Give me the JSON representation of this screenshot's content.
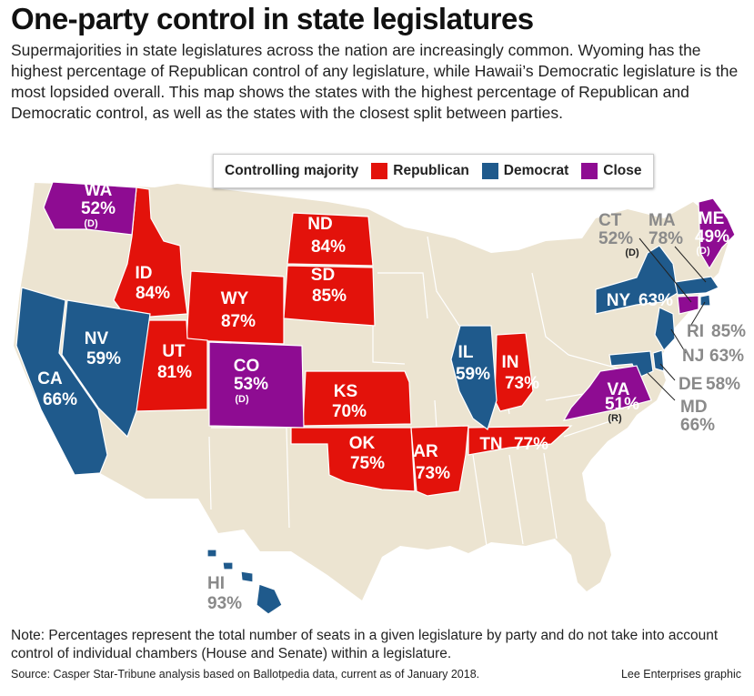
{
  "title": "One-party control in state legislatures",
  "intro": "Supermajorities in state legislatures across the nation are increasingly common. Wyoming has the highest percentage of Republican control of any legislature, while Hawaii’s Democratic legislature is the most lopsided overall. This map shows the states with the highest percentage of Republican and Democratic control, as well as the states with the closest split between parties.",
  "legend": {
    "title": "Controlling majority",
    "items": [
      {
        "label": "Republican",
        "color": "#e3120b"
      },
      {
        "label": "Democrat",
        "color": "#1f5a8c"
      },
      {
        "label": "Close",
        "color": "#8e0c92"
      }
    ]
  },
  "colors": {
    "base": "#ece4d1",
    "border": "#ffffff",
    "gray_label": "#8a8a8a"
  },
  "states": {
    "WA": {
      "abbr": "WA",
      "pct": "52%",
      "note": "(D)",
      "party": "Close"
    },
    "ID": {
      "abbr": "ID",
      "pct": "84%",
      "party": "Republican"
    },
    "WY": {
      "abbr": "WY",
      "pct": "87%",
      "party": "Republican"
    },
    "ND": {
      "abbr": "ND",
      "pct": "84%",
      "party": "Republican"
    },
    "SD": {
      "abbr": "SD",
      "pct": "85%",
      "party": "Republican"
    },
    "UT": {
      "abbr": "UT",
      "pct": "81%",
      "party": "Republican"
    },
    "CO": {
      "abbr": "CO",
      "pct": "53%",
      "note": "(D)",
      "party": "Close"
    },
    "KS": {
      "abbr": "KS",
      "pct": "70%",
      "party": "Republican"
    },
    "OK": {
      "abbr": "OK",
      "pct": "75%",
      "party": "Republican"
    },
    "AR": {
      "abbr": "AR",
      "pct": "73%",
      "party": "Republican"
    },
    "TN": {
      "abbr": "TN",
      "pct": "77%",
      "party": "Republican"
    },
    "IN": {
      "abbr": "IN",
      "pct": "73%",
      "party": "Republican"
    },
    "CA": {
      "abbr": "CA",
      "pct": "66%",
      "party": "Democrat"
    },
    "NV": {
      "abbr": "NV",
      "pct": "59%",
      "party": "Democrat"
    },
    "IL": {
      "abbr": "IL",
      "pct": "59%",
      "party": "Democrat"
    },
    "NY": {
      "abbr": "NY",
      "pct": "63%",
      "party": "Democrat"
    },
    "NJ": {
      "abbr": "NJ",
      "pct": "63%",
      "party": "Democrat"
    },
    "DE": {
      "abbr": "DE",
      "pct": "58%",
      "party": "Democrat"
    },
    "MD": {
      "abbr": "MD",
      "pct": "66%",
      "party": "Democrat"
    },
    "VA": {
      "abbr": "VA",
      "pct": "51%",
      "note": "(R)",
      "party": "Close"
    },
    "CT": {
      "abbr": "CT",
      "pct": "52%",
      "note": "(D)",
      "party": "Close"
    },
    "MA": {
      "abbr": "MA",
      "pct": "78%",
      "party": "Democrat"
    },
    "RI": {
      "abbr": "RI",
      "pct": "85%",
      "party": "Democrat"
    },
    "ME": {
      "abbr": "ME",
      "pct": "49%",
      "note": "(D)",
      "party": "Close"
    },
    "HI": {
      "abbr": "HI",
      "pct": "93%",
      "party": "Democrat"
    }
  },
  "note": "Note: Percentages represent the total number of seats in a given legislature by party and do not take into account control of individual chambers (House and Senate) within a legislature.",
  "source": "Source: Casper Star-Tribune analysis based on Ballotpedia data, current as of January 2018.",
  "credit": "Lee Enterprises graphic"
}
